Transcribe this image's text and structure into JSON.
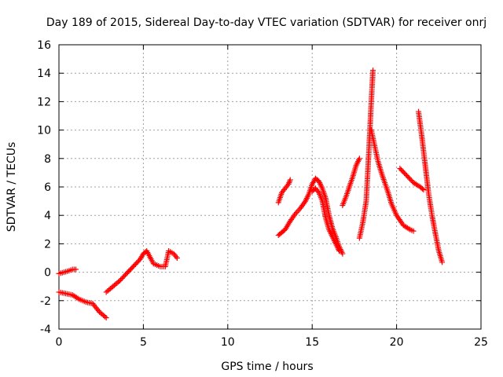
{
  "chart_data": {
    "type": "scatter",
    "title": "Day 189 of 2015, Sidereal Day-to-day VTEC variation (SDTVAR) for receiver onrj",
    "xlabel": "GPS time / hours",
    "ylabel": "SDTVAR / TECUs",
    "xlim": [
      0,
      25
    ],
    "ylim": [
      -4,
      16
    ],
    "xticks": [
      0,
      5,
      10,
      15,
      20,
      25
    ],
    "yticks": [
      -4,
      -2,
      0,
      2,
      4,
      6,
      8,
      10,
      12,
      14,
      16
    ],
    "xtick_labels": [
      "0",
      "5",
      "10",
      "15",
      "20",
      "25"
    ],
    "ytick_labels": [
      "-4",
      "-2",
      "0",
      "2",
      "4",
      "6",
      "8",
      "10",
      "12",
      "14",
      "16"
    ],
    "grid": true,
    "marker": "plus",
    "color": "#ff0000",
    "series": [
      {
        "name": "SDTVAR",
        "x": [
          0.0,
          0.3,
          0.6,
          0.8,
          1.0,
          0.0,
          0.4,
          0.8,
          1.2,
          1.6,
          2.0,
          2.4,
          2.8,
          2.8,
          3.2,
          3.6,
          4.0,
          4.4,
          4.8,
          5.0,
          5.2,
          5.6,
          6.0,
          6.3,
          6.5,
          6.8,
          7.0,
          13.0,
          13.2,
          13.4,
          13.6,
          13.7,
          13.0,
          13.2,
          13.4,
          13.5,
          13.7,
          14.0,
          14.3,
          14.6,
          14.8,
          15.0,
          15.2,
          15.4,
          15.6,
          15.8,
          16.0,
          16.2,
          16.4,
          16.6,
          16.8,
          15.0,
          15.2,
          15.4,
          15.6,
          15.8,
          16.0,
          16.2,
          16.4,
          16.6,
          16.8,
          17.0,
          17.2,
          17.4,
          17.6,
          17.8,
          17.8,
          18.0,
          18.2,
          18.3,
          18.4,
          18.5,
          18.6,
          18.5,
          18.7,
          18.9,
          19.1,
          19.3,
          19.5,
          19.7,
          20.0,
          20.4,
          20.8,
          21.0,
          20.2,
          20.6,
          21.0,
          21.4,
          21.6,
          21.3,
          21.5,
          21.7,
          21.9,
          22.1,
          22.3,
          22.5,
          22.7
        ],
        "y": [
          -0.1,
          0.0,
          0.1,
          0.2,
          0.2,
          -1.4,
          -1.5,
          -1.6,
          -1.9,
          -2.1,
          -2.2,
          -2.8,
          -3.2,
          -1.4,
          -1.0,
          -0.6,
          -0.1,
          0.4,
          0.9,
          1.3,
          1.5,
          0.6,
          0.4,
          0.4,
          1.5,
          1.3,
          1.0,
          4.9,
          5.6,
          5.9,
          6.2,
          6.5,
          2.6,
          2.8,
          3.0,
          3.2,
          3.6,
          4.1,
          4.5,
          5.0,
          5.5,
          6.2,
          6.6,
          6.4,
          5.9,
          5.2,
          4.0,
          3.1,
          2.5,
          1.8,
          1.3,
          5.7,
          5.9,
          5.6,
          5.0,
          3.8,
          3.0,
          2.5,
          2.0,
          1.5,
          4.7,
          5.3,
          6.0,
          6.7,
          7.5,
          8.0,
          2.4,
          3.5,
          5.0,
          7.2,
          9.5,
          12.0,
          14.2,
          10.0,
          8.9,
          7.8,
          7.0,
          6.3,
          5.6,
          4.8,
          4.0,
          3.3,
          3.0,
          2.9,
          7.3,
          6.8,
          6.3,
          6.0,
          5.8,
          11.3,
          9.5,
          7.5,
          5.5,
          4.0,
          2.7,
          1.5,
          0.7
        ]
      }
    ]
  }
}
